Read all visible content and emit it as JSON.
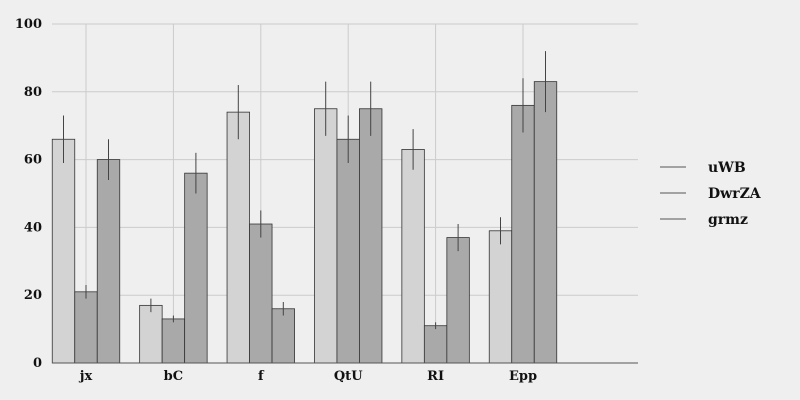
{
  "chart_data": {
    "type": "bar",
    "categories": [
      "jx",
      "bC",
      "f",
      "QtU",
      "RI",
      "Epp"
    ],
    "series": [
      {
        "name": "uWB",
        "color": "#d3d3d3",
        "values": [
          66,
          17,
          74,
          75,
          63,
          39
        ],
        "errors": [
          7,
          2,
          8,
          8,
          6,
          4
        ]
      },
      {
        "name": "DwrZA",
        "color": "#a9a9a9",
        "values": [
          21,
          13,
          41,
          66,
          11,
          76
        ],
        "errors": [
          2,
          1,
          4,
          7,
          1,
          8
        ]
      },
      {
        "name": "grmz",
        "color": "#a9a9a9",
        "values": [
          60,
          56,
          16,
          75,
          37,
          83
        ],
        "errors": [
          6,
          6,
          2,
          8,
          4,
          9
        ]
      }
    ],
    "ylim": [
      0,
      100
    ],
    "yticks": [
      0,
      20,
      40,
      60,
      80,
      100
    ],
    "title": "",
    "xlabel": "",
    "ylabel": "",
    "grid": true,
    "legend_position": "right"
  }
}
